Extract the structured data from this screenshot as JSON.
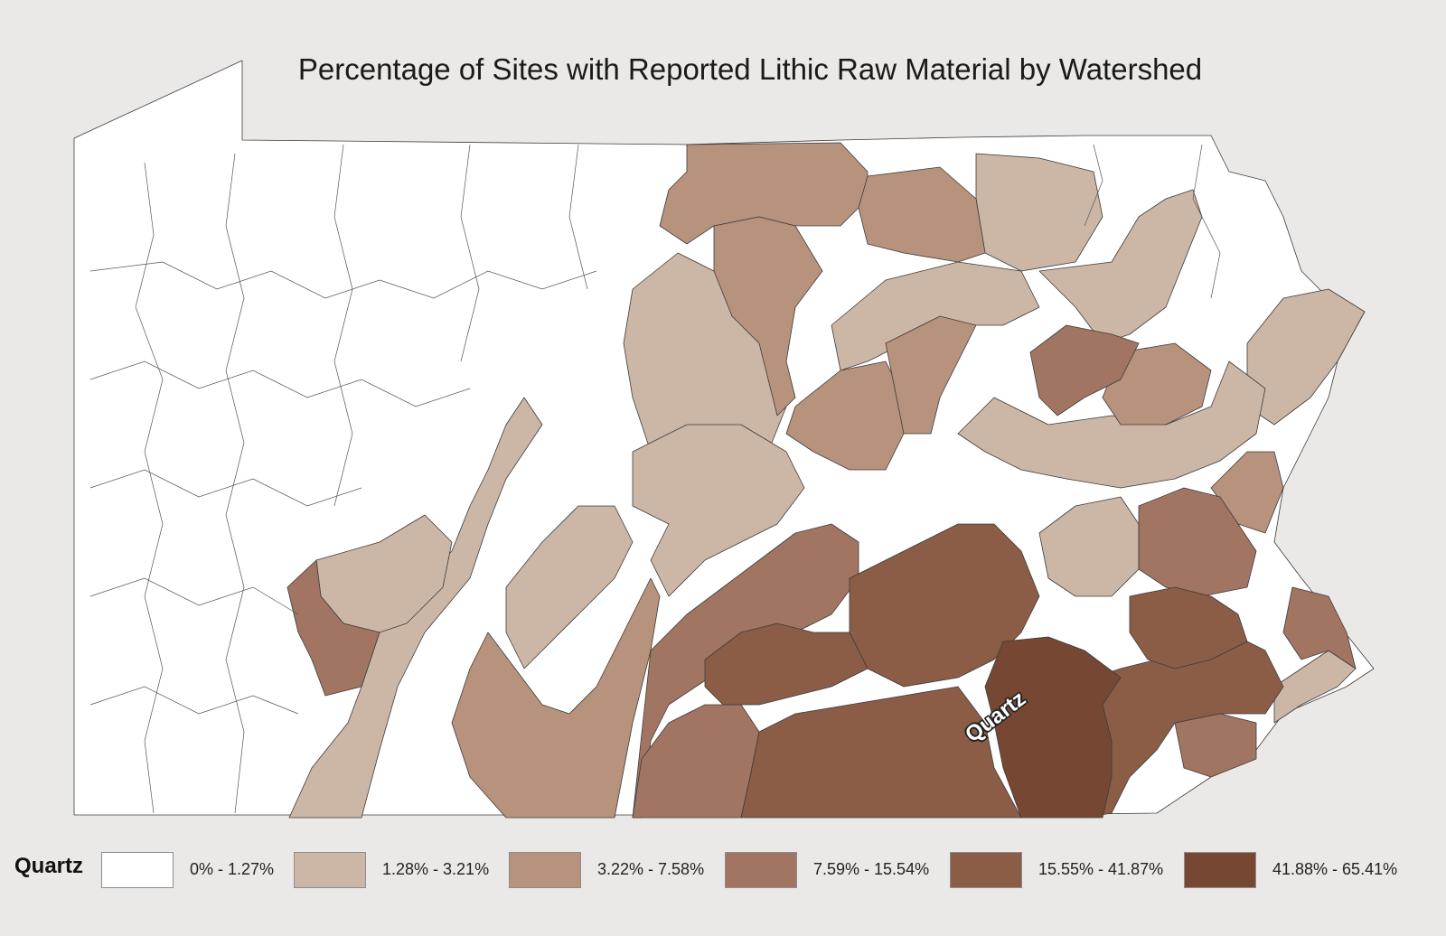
{
  "title": "Percentage of Sites with Reported Lithic Raw Material by Watershed",
  "callout": "Quartz",
  "legend": {
    "title": "Quartz",
    "classes": [
      {
        "label": "0% - 1.27%",
        "color": "#ffffff"
      },
      {
        "label": "1.28% - 3.21%",
        "color": "#ccb6a6"
      },
      {
        "label": "3.22% - 7.58%",
        "color": "#b7927d"
      },
      {
        "label": "7.59% - 15.54%",
        "color": "#a17561"
      },
      {
        "label": "15.55% - 41.87%",
        "color": "#8b5c46"
      },
      {
        "label": "41.88% - 65.41%",
        "color": "#764833"
      }
    ]
  }
}
